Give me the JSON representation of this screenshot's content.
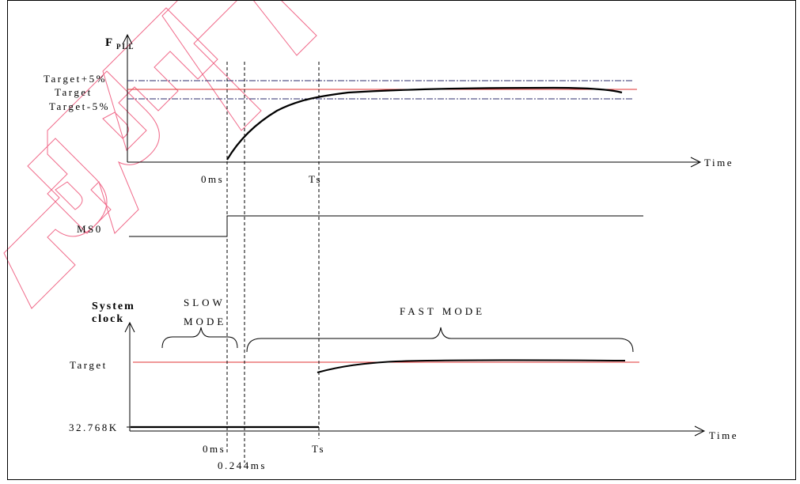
{
  "fpll_axis": {
    "label_main": "F",
    "label_sub": "PLL",
    "time_label": "Time",
    "target_plus": "Target+5%",
    "target": "Target",
    "target_minus": "Target-5%",
    "t0_label": "0ms",
    "ts_label": "Ts"
  },
  "ms0": {
    "label": "MS0"
  },
  "sysclk_axis": {
    "title_line1": "System",
    "title_line2": "clock",
    "slow_mode_line1": "SLOW",
    "slow_mode_line2": "MODE",
    "fast_mode": "FAST MODE",
    "target": "Target",
    "low_freq": "32.768K",
    "time_label": "Time",
    "t0_label": "0ms",
    "t1_label": "0.244ms",
    "ts_label": "Ts"
  },
  "watermark": {
    "text": "PREL"
  },
  "colors": {
    "target_line": "#e03030",
    "tolerance_line": "#2c2c6c",
    "watermark": "#f06a8a",
    "ink": "#000000"
  }
}
